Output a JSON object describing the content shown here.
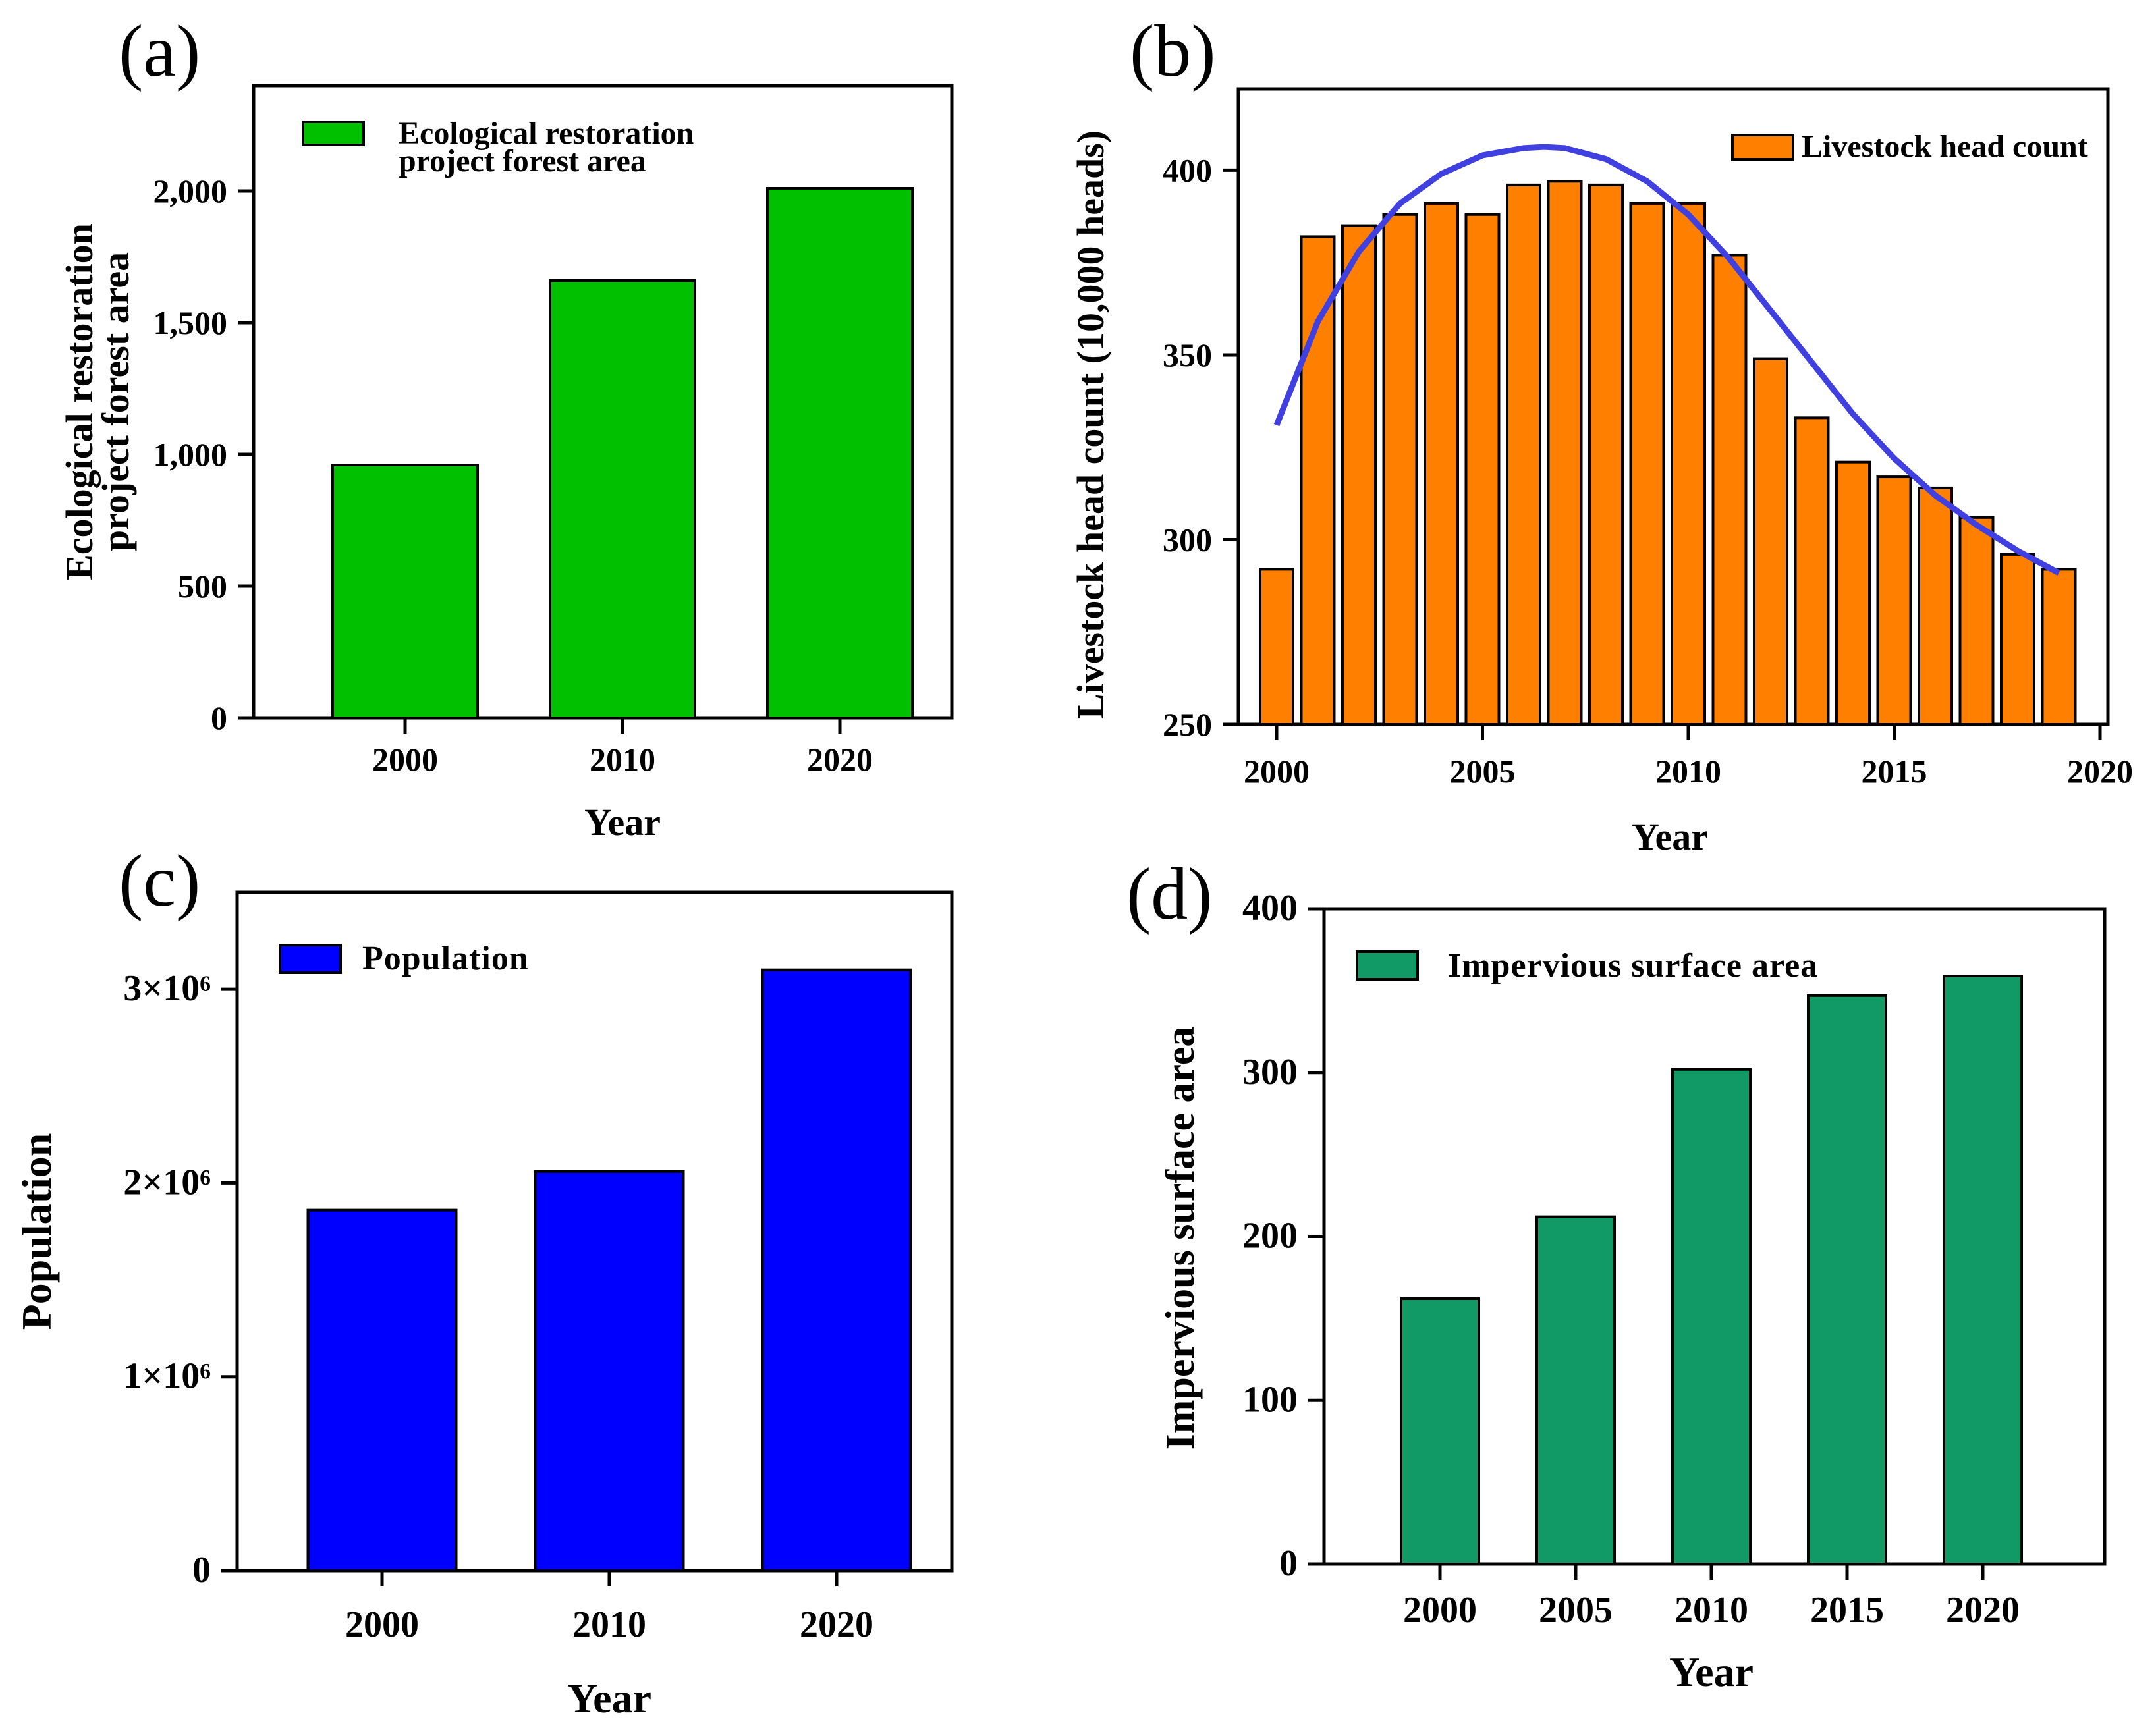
{
  "chart_data": [
    {
      "id": "a",
      "panel_label": "(a)",
      "type": "bar",
      "categories": [
        "2000",
        "2010",
        "2020"
      ],
      "series": [
        {
          "name": "Ecological restoration project forest area",
          "values": [
            960,
            1660,
            2010
          ],
          "color": "#00c000"
        }
      ],
      "legend_lines": [
        "Ecological restoration",
        "project forest area"
      ],
      "legend_position": "top-left",
      "xlabel": "Year",
      "ylabel_lines": [
        "Ecological restoration",
        "project forest area"
      ],
      "ylim": [
        0,
        2400
      ],
      "yticks": [
        0,
        500,
        1000,
        1500,
        2000
      ],
      "ytick_labels": [
        "0",
        "500",
        "1,000",
        "1,500",
        "2,000"
      ]
    },
    {
      "id": "b",
      "panel_label": "(b)",
      "type": "bar",
      "x": [
        2000,
        2001,
        2002,
        2003,
        2004,
        2005,
        2006,
        2007,
        2008,
        2009,
        2010,
        2011,
        2012,
        2013,
        2014,
        2015,
        2016,
        2017,
        2018,
        2019
      ],
      "series": [
        {
          "name": "Livestock head count",
          "values": [
            292,
            382,
            385,
            388,
            391,
            388,
            396,
            397,
            396,
            391,
            391,
            377,
            349,
            333,
            321,
            317,
            314,
            306,
            296,
            292
          ],
          "color": "#ff8000"
        }
      ],
      "trend_line": {
        "color": "#4040e0",
        "x": [
          2000,
          2001,
          2002,
          2003,
          2004,
          2005,
          2006,
          2006.5,
          2007,
          2008,
          2009,
          2010,
          2011,
          2012,
          2013,
          2014,
          2015,
          2016,
          2017,
          2018,
          2019
        ],
        "y": [
          331,
          359,
          378,
          391,
          399,
          404,
          406,
          406.3,
          406,
          403,
          397,
          388,
          376,
          362,
          348,
          334,
          322,
          312,
          304,
          297,
          291
        ]
      },
      "legend_lines": [
        "Livestock head count"
      ],
      "legend_position": "top-right",
      "xlabel": "Year",
      "ylabel_lines": [
        "Livestock head count (10,000 heads)"
      ],
      "xlim": [
        1999,
        2020
      ],
      "xticks": [
        2000,
        2005,
        2010,
        2015,
        2020
      ],
      "ylim": [
        250,
        422
      ],
      "yticks": [
        250,
        300,
        350,
        400
      ]
    },
    {
      "id": "c",
      "panel_label": "(c)",
      "type": "bar",
      "categories": [
        "2000",
        "2010",
        "2020"
      ],
      "series": [
        {
          "name": "Population",
          "values": [
            1860000,
            2060000,
            3100000
          ],
          "color": "#0000ff"
        }
      ],
      "legend_lines": [
        "Population"
      ],
      "legend_position": "top-left",
      "xlabel": "Year",
      "ylabel_lines": [
        "Population"
      ],
      "ylim": [
        0,
        3500000
      ],
      "yticks": [
        0,
        1000000,
        2000000,
        3000000
      ],
      "ytick_labels": [
        "0",
        "1×10⁶",
        "2×10⁶",
        "3×10⁶"
      ]
    },
    {
      "id": "d",
      "panel_label": "(d)",
      "type": "bar",
      "categories": [
        "2000",
        "2005",
        "2010",
        "2015",
        "2020"
      ],
      "series": [
        {
          "name": "Impervious surface area",
          "values": [
            162,
            212,
            302,
            347,
            359
          ],
          "color": "#119966"
        }
      ],
      "legend_lines": [
        "Impervious surface area"
      ],
      "legend_position": "top-left",
      "xlabel": "Year",
      "ylabel_lines": [
        "Impervious surface area"
      ],
      "ylim": [
        0,
        400
      ],
      "yticks": [
        0,
        100,
        200,
        300,
        400
      ]
    }
  ]
}
